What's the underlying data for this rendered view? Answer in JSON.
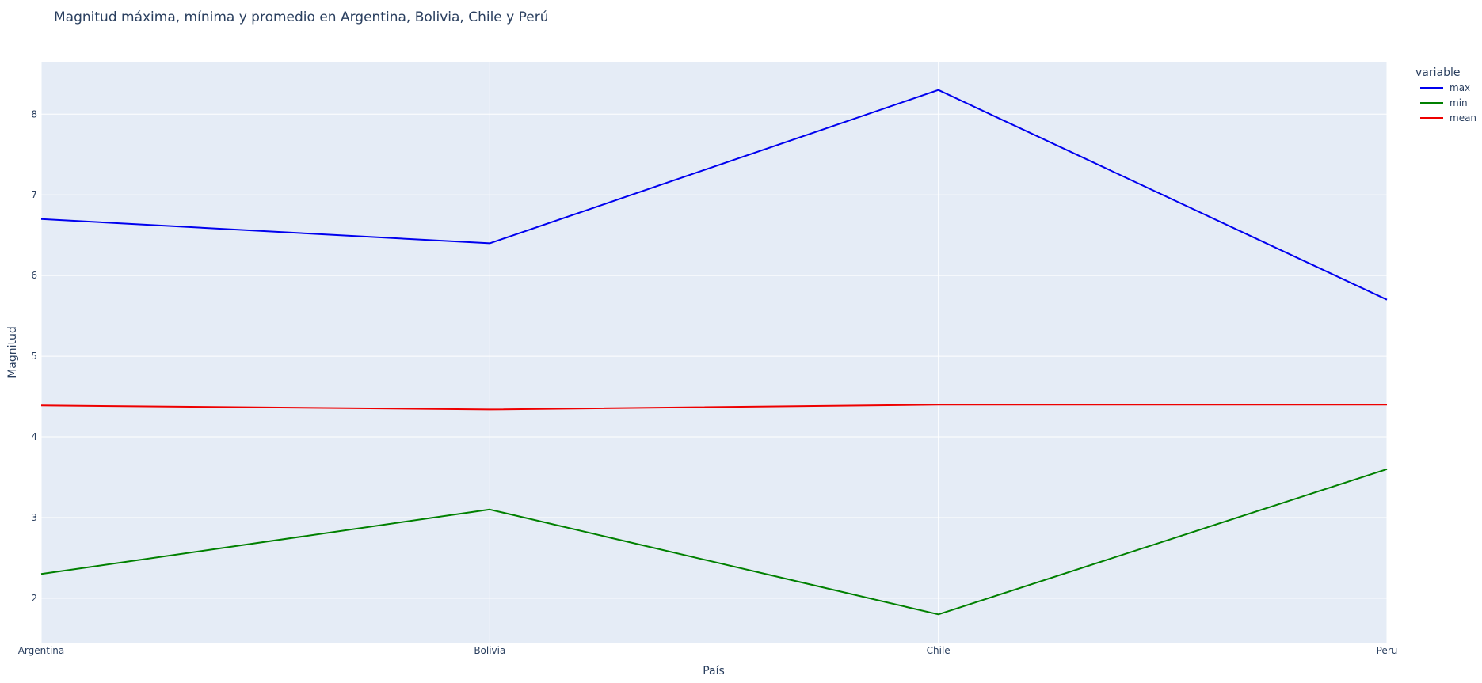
{
  "chart_data": {
    "type": "line",
    "title": "Magnitud máxima, mínima y promedio en Argentina, Bolivia, Chile y Perú",
    "xlabel": "País",
    "ylabel": "Magnitud",
    "categories": [
      "Argentina",
      "Bolivia",
      "Chile",
      "Peru"
    ],
    "ylim": [
      1.45,
      8.65
    ],
    "yticks": [
      2,
      3,
      4,
      5,
      6,
      7,
      8
    ],
    "grid": true,
    "plot_background": "#e5ecf6",
    "grid_color": "#ffffff",
    "legend": {
      "title": "variable",
      "position": "top-right"
    },
    "series": [
      {
        "name": "max",
        "color": "#0000ee",
        "values": [
          6.7,
          6.4,
          8.3,
          5.7
        ]
      },
      {
        "name": "min",
        "color": "#008000",
        "values": [
          2.3,
          3.1,
          1.8,
          3.6
        ]
      },
      {
        "name": "mean",
        "color": "#ee0000",
        "values": [
          4.39,
          4.34,
          4.4,
          4.4
        ]
      }
    ]
  }
}
